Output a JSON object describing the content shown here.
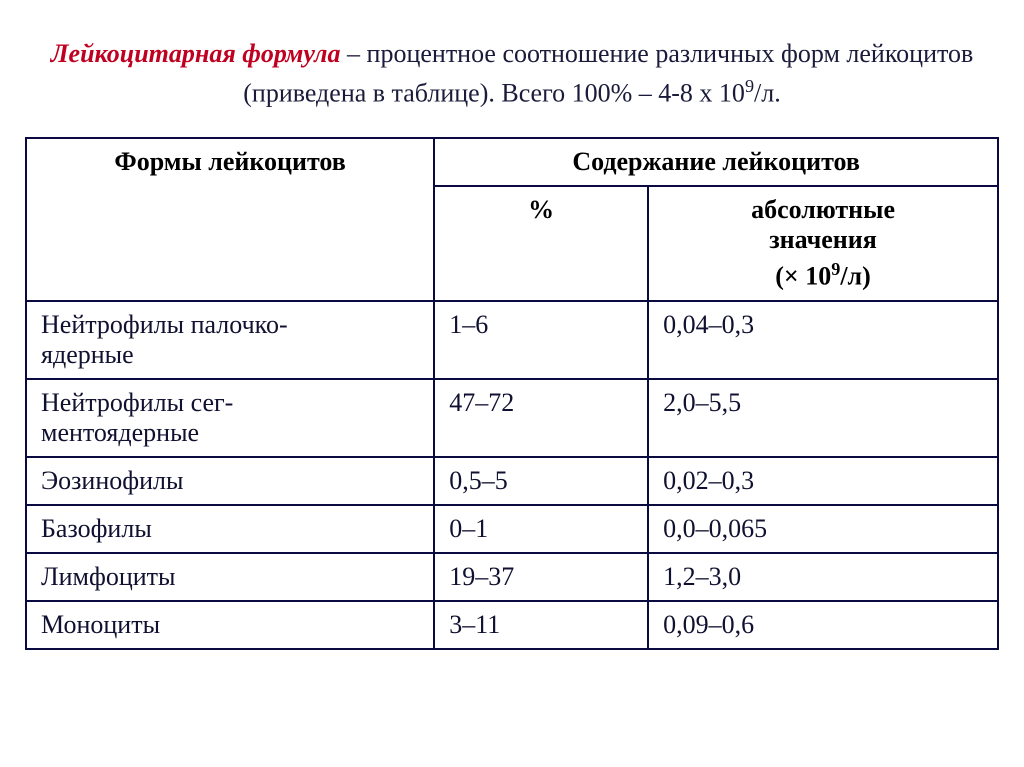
{
  "heading": {
    "term": "Лейкоцитарная формула",
    "body_part1": " – процентное соотношение различных форм лейкоцитов (приведена в таблице). Всего 100% – 4-8 х 10",
    "body_sup": "9",
    "body_part2": "/л."
  },
  "table": {
    "header": {
      "forms": "Формы лейкоцитов",
      "content": "Содержание лейкоцитов",
      "percent": "%",
      "absolute_line1": "абсолютные",
      "absolute_line2": "значения",
      "absolute_unit_prefix": "(× 10",
      "absolute_unit_sup": "9",
      "absolute_unit_suffix": "/л)"
    },
    "rows": [
      {
        "name_line1": "Нейтрофилы палочко-",
        "name_line2": "ядерные",
        "percent": "1–6",
        "abs": "0,04–0,3"
      },
      {
        "name_line1": "Нейтрофилы сег-",
        "name_line2": "ментоядерные",
        "percent": "47–72",
        "abs": "2,0–5,5"
      },
      {
        "name_line1": "Эозинофилы",
        "name_line2": "",
        "percent": "0,5–5",
        "abs": "0,02–0,3"
      },
      {
        "name_line1": "Базофилы",
        "name_line2": "",
        "percent": "0–1",
        "abs": "0,0–0,065"
      },
      {
        "name_line1": "Лимфоциты",
        "name_line2": "",
        "percent": "19–37",
        "abs": "1,2–3,0"
      },
      {
        "name_line1": "Моноциты",
        "name_line2": "",
        "percent": "3–11",
        "abs": "0,09–0,6"
      }
    ]
  },
  "style": {
    "term_color": "#c00020",
    "text_color": "#1a1a3a",
    "border_color": "#0a0a40",
    "background_color": "#ffffff",
    "heading_fontsize": 26,
    "table_fontsize": 26,
    "col_widths_pct": [
      42,
      22,
      36
    ]
  }
}
